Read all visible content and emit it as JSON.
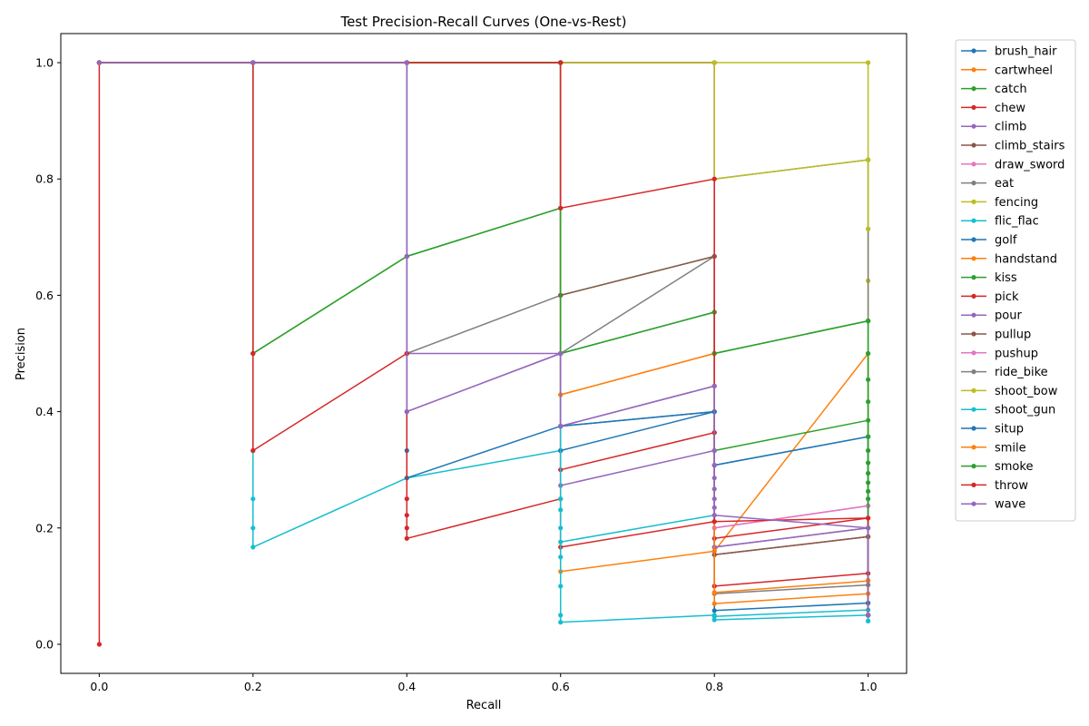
{
  "chart_data": {
    "type": "line",
    "title": "Test Precision-Recall Curves (One-vs-Rest)",
    "xlabel": "Recall",
    "ylabel": "Precision",
    "xlim": [
      -0.05,
      1.05
    ],
    "ylim": [
      -0.05,
      1.05
    ],
    "xticks": [
      0.0,
      0.2,
      0.4,
      0.6,
      0.8,
      1.0
    ],
    "yticks": [
      0.0,
      0.2,
      0.4,
      0.6,
      0.8,
      1.0
    ],
    "xtick_labels": [
      "0.0",
      "0.2",
      "0.4",
      "0.6",
      "0.8",
      "1.0"
    ],
    "ytick_labels": [
      "0.0",
      "0.2",
      "0.4",
      "0.6",
      "0.8",
      "1.0"
    ],
    "grid": false,
    "legend_position": "outside-top-right",
    "series": [
      {
        "name": "brush_hair",
        "color": "#1f77b4",
        "points": [
          [
            0,
            1
          ],
          [
            0.2,
            1
          ],
          [
            0.4,
            1
          ],
          [
            0.6,
            1
          ],
          [
            0.6,
            0.375
          ],
          [
            0.8,
            0.4
          ],
          [
            0.8,
            0.308
          ],
          [
            1.0,
            0.357
          ],
          [
            1.0,
            0.071
          ],
          [
            1.0,
            0.05
          ]
        ]
      },
      {
        "name": "cartwheel",
        "color": "#ff7f0e",
        "points": [
          [
            0,
            1
          ],
          [
            0.2,
            1
          ],
          [
            0.4,
            1
          ],
          [
            0.6,
            1
          ],
          [
            0.6,
            0.429
          ],
          [
            0.8,
            0.5
          ],
          [
            0.8,
            0.16
          ],
          [
            1.0,
            0.5
          ],
          [
            1.0,
            0.11
          ],
          [
            1.0,
            0.05
          ]
        ]
      },
      {
        "name": "catch",
        "color": "#2ca02c",
        "points": [
          [
            0,
            1
          ],
          [
            0.2,
            1
          ],
          [
            0.2,
            0.5
          ],
          [
            0.4,
            0.667
          ],
          [
            0.6,
            0.75
          ],
          [
            0.6,
            0.5
          ],
          [
            0.8,
            0.571
          ],
          [
            0.8,
            0.333
          ],
          [
            1.0,
            0.385
          ],
          [
            1.0,
            0.05
          ]
        ]
      },
      {
        "name": "chew",
        "color": "#d62728",
        "points": [
          [
            0,
            1
          ],
          [
            0.2,
            1
          ],
          [
            0.4,
            1
          ],
          [
            0.6,
            1
          ],
          [
            0.6,
            0.3
          ],
          [
            0.8,
            0.364
          ],
          [
            0.8,
            0.182
          ],
          [
            1.0,
            0.217
          ],
          [
            1.0,
            0.05
          ]
        ]
      },
      {
        "name": "climb",
        "color": "#9467bd",
        "points": [
          [
            0,
            1
          ],
          [
            0.2,
            1
          ],
          [
            0.4,
            1
          ],
          [
            0.4,
            0.5
          ],
          [
            0.6,
            0.5
          ],
          [
            0.6,
            0.375
          ],
          [
            0.8,
            0.444
          ],
          [
            0.8,
            0.167
          ],
          [
            1.0,
            0.2
          ],
          [
            1.0,
            0.05
          ]
        ]
      },
      {
        "name": "climb_stairs",
        "color": "#8c564b",
        "points": [
          [
            0,
            1
          ],
          [
            0.2,
            1
          ],
          [
            0.4,
            1
          ],
          [
            0.6,
            1
          ],
          [
            0.8,
            1
          ],
          [
            0.8,
            0.154
          ],
          [
            1.0,
            0.185
          ],
          [
            1.0,
            0.05
          ]
        ]
      },
      {
        "name": "draw_sword",
        "color": "#e377c2",
        "points": [
          [
            0,
            1
          ],
          [
            0.2,
            1
          ],
          [
            0.4,
            1
          ],
          [
            0.6,
            1
          ],
          [
            0.8,
            1
          ],
          [
            0.8,
            0.2
          ],
          [
            1.0,
            0.238
          ],
          [
            1.0,
            0.05
          ]
        ]
      },
      {
        "name": "eat",
        "color": "#7f7f7f",
        "points": [
          [
            0,
            1
          ],
          [
            0.2,
            1
          ],
          [
            0.4,
            1
          ],
          [
            0.4,
            0.5
          ],
          [
            0.6,
            0.6
          ],
          [
            0.6,
            0.5
          ],
          [
            0.8,
            0.667
          ],
          [
            0.8,
            0.087
          ],
          [
            1.0,
            0.102
          ],
          [
            1.0,
            0.05
          ]
        ]
      },
      {
        "name": "fencing",
        "color": "#bcbd22",
        "points": [
          [
            0,
            1
          ],
          [
            0.2,
            1
          ],
          [
            0.4,
            1
          ],
          [
            0.6,
            1
          ],
          [
            0.8,
            1
          ],
          [
            1.0,
            1
          ],
          [
            1.0,
            0.833
          ],
          [
            1.0,
            0.714
          ],
          [
            1.0,
            0.625
          ],
          [
            1.0,
            0.556
          ]
        ]
      },
      {
        "name": "flic_flac",
        "color": "#17becf",
        "points": [
          [
            0,
            1
          ],
          [
            0.2,
            1
          ],
          [
            0.2,
            0.333
          ],
          [
            0.2,
            0.25
          ],
          [
            0.2,
            0.2
          ],
          [
            0.2,
            0.167
          ],
          [
            0.4,
            0.286
          ],
          [
            0.6,
            0.333
          ],
          [
            0.6,
            0.176
          ],
          [
            0.8,
            0.222
          ],
          [
            0.8,
            0.048
          ],
          [
            1.0,
            0.059
          ],
          [
            1.0,
            0.04
          ]
        ]
      },
      {
        "name": "golf",
        "color": "#1f77b4",
        "points": [
          [
            0,
            1
          ],
          [
            0.2,
            1
          ],
          [
            0.4,
            1
          ],
          [
            0.4,
            0.333
          ],
          [
            0.4,
            0.286
          ],
          [
            0.6,
            0.375
          ],
          [
            0.6,
            0.333
          ],
          [
            0.8,
            0.4
          ],
          [
            0.8,
            0.058
          ],
          [
            1.0,
            0.071
          ],
          [
            1.0,
            0.05
          ]
        ]
      },
      {
        "name": "handstand",
        "color": "#ff7f0e",
        "points": [
          [
            0,
            1
          ],
          [
            0.2,
            1
          ],
          [
            0.4,
            1
          ],
          [
            0.6,
            1
          ],
          [
            0.6,
            0.125
          ],
          [
            0.8,
            0.16
          ],
          [
            0.8,
            0.07
          ],
          [
            1.0,
            0.087
          ],
          [
            1.0,
            0.05
          ]
        ]
      },
      {
        "name": "kiss",
        "color": "#2ca02c",
        "points": [
          [
            0,
            1
          ],
          [
            0.2,
            1
          ],
          [
            0.2,
            0.5
          ],
          [
            0.4,
            0.667
          ],
          [
            0.6,
            0.75
          ],
          [
            0.6,
            0.6
          ],
          [
            0.8,
            0.667
          ],
          [
            0.8,
            0.5
          ],
          [
            1.0,
            0.556
          ],
          [
            1.0,
            0.5
          ],
          [
            1.0,
            0.455
          ],
          [
            1.0,
            0.417
          ],
          [
            1.0,
            0.333
          ],
          [
            1.0,
            0.25
          ],
          [
            1.0,
            0.05
          ]
        ]
      },
      {
        "name": "pick",
        "color": "#d62728",
        "points": [
          [
            0,
            0
          ],
          [
            0,
            1
          ],
          [
            0.2,
            1
          ],
          [
            0.2,
            0.5
          ],
          [
            0.2,
            0.333
          ],
          [
            0.4,
            0.5
          ],
          [
            0.4,
            0.25
          ],
          [
            0.4,
            0.222
          ],
          [
            0.4,
            0.2
          ],
          [
            0.4,
            0.182
          ],
          [
            0.6,
            0.25
          ],
          [
            0.6,
            0.167
          ],
          [
            0.8,
            0.211
          ],
          [
            0.8,
            0.1
          ],
          [
            1.0,
            0.122
          ],
          [
            1.0,
            0.05
          ]
        ]
      },
      {
        "name": "pour",
        "color": "#9467bd",
        "points": [
          [
            0,
            1
          ],
          [
            0.2,
            1
          ],
          [
            0.4,
            1
          ],
          [
            0.4,
            0.667
          ],
          [
            0.4,
            0.4
          ],
          [
            0.6,
            0.5
          ],
          [
            0.6,
            0.273
          ],
          [
            0.8,
            0.333
          ],
          [
            0.8,
            0.167
          ],
          [
            1.0,
            0.2
          ],
          [
            1.0,
            0.05
          ]
        ]
      },
      {
        "name": "pullup",
        "color": "#8c564b",
        "points": [
          [
            0,
            1
          ],
          [
            0.2,
            1
          ],
          [
            0.4,
            1
          ],
          [
            0.6,
            1
          ],
          [
            0.6,
            0.6
          ],
          [
            0.8,
            0.667
          ],
          [
            0.8,
            0.154
          ],
          [
            1.0,
            0.185
          ],
          [
            1.0,
            0.05
          ]
        ]
      },
      {
        "name": "pushup",
        "color": "#e377c2",
        "points": [
          [
            0,
            1
          ],
          [
            0.2,
            1
          ],
          [
            0.4,
            1
          ],
          [
            0.6,
            1
          ],
          [
            0.8,
            1
          ],
          [
            0.8,
            0.2
          ],
          [
            1.0,
            0.238
          ],
          [
            1.0,
            0.05
          ]
        ]
      },
      {
        "name": "ride_bike",
        "color": "#7f7f7f",
        "points": [
          [
            0,
            1
          ],
          [
            0.2,
            1
          ],
          [
            0.4,
            1
          ],
          [
            0.6,
            1
          ],
          [
            0.8,
            1
          ],
          [
            0.8,
            0.8
          ],
          [
            1.0,
            0.833
          ],
          [
            1.0,
            0.556
          ]
        ]
      },
      {
        "name": "shoot_bow",
        "color": "#bcbd22",
        "points": [
          [
            0,
            1
          ],
          [
            0.2,
            1
          ],
          [
            0.4,
            1
          ],
          [
            0.6,
            1
          ],
          [
            0.8,
            1
          ],
          [
            0.8,
            0.8
          ],
          [
            1.0,
            0.833
          ],
          [
            1.0,
            0.714
          ]
        ]
      },
      {
        "name": "shoot_gun",
        "color": "#17becf",
        "points": [
          [
            0,
            1
          ],
          [
            0.2,
            1
          ],
          [
            0.4,
            1
          ],
          [
            0.6,
            1
          ],
          [
            0.6,
            0.25
          ],
          [
            0.6,
            0.231
          ],
          [
            0.6,
            0.2
          ],
          [
            0.6,
            0.15
          ],
          [
            0.6,
            0.1
          ],
          [
            0.6,
            0.05
          ],
          [
            0.6,
            0.038
          ],
          [
            0.8,
            0.05
          ],
          [
            0.8,
            0.042
          ],
          [
            1.0,
            0.05
          ],
          [
            1.0,
            0.04
          ]
        ]
      },
      {
        "name": "situp",
        "color": "#1f77b4",
        "points": [
          [
            0,
            1
          ],
          [
            0.2,
            1
          ],
          [
            0.4,
            1
          ],
          [
            0.6,
            1
          ],
          [
            0.6,
            0.375
          ],
          [
            0.8,
            0.4
          ],
          [
            0.8,
            0.308
          ],
          [
            1.0,
            0.357
          ],
          [
            1.0,
            0.05
          ]
        ]
      },
      {
        "name": "smile",
        "color": "#ff7f0e",
        "points": [
          [
            0,
            1
          ],
          [
            0.2,
            1
          ],
          [
            0.4,
            1
          ],
          [
            0.6,
            1
          ],
          [
            0.6,
            0.429
          ],
          [
            0.8,
            0.5
          ],
          [
            0.8,
            0.444
          ],
          [
            0.8,
            0.089
          ],
          [
            1.0,
            0.109
          ],
          [
            1.0,
            0.05
          ]
        ]
      },
      {
        "name": "smoke",
        "color": "#2ca02c",
        "points": [
          [
            0,
            1
          ],
          [
            0.2,
            1
          ],
          [
            0.4,
            1
          ],
          [
            0.6,
            1
          ],
          [
            0.6,
            0.5
          ],
          [
            0.8,
            0.571
          ],
          [
            0.8,
            0.5
          ],
          [
            1.0,
            0.556
          ],
          [
            1.0,
            0.357
          ],
          [
            1.0,
            0.312
          ],
          [
            1.0,
            0.294
          ],
          [
            1.0,
            0.278
          ],
          [
            1.0,
            0.263
          ],
          [
            1.0,
            0.05
          ]
        ]
      },
      {
        "name": "throw",
        "color": "#d62728",
        "points": [
          [
            0,
            1
          ],
          [
            0.2,
            1
          ],
          [
            0.4,
            1
          ],
          [
            0.6,
            1
          ],
          [
            0.6,
            0.75
          ],
          [
            0.8,
            0.8
          ],
          [
            0.8,
            0.364
          ],
          [
            0.8,
            0.211
          ],
          [
            1.0,
            0.217
          ],
          [
            1.0,
            0.05
          ]
        ]
      },
      {
        "name": "wave",
        "color": "#9467bd",
        "points": [
          [
            0,
            1
          ],
          [
            0.2,
            1
          ],
          [
            0.4,
            1
          ],
          [
            0.4,
            0.667
          ],
          [
            0.4,
            0.4
          ],
          [
            0.6,
            0.5
          ],
          [
            0.6,
            0.375
          ],
          [
            0.8,
            0.444
          ],
          [
            0.8,
            0.333
          ],
          [
            0.8,
            0.308
          ],
          [
            0.8,
            0.286
          ],
          [
            0.8,
            0.267
          ],
          [
            0.8,
            0.25
          ],
          [
            0.8,
            0.235
          ],
          [
            0.8,
            0.222
          ],
          [
            1.0,
            0.2
          ],
          [
            1.0,
            0.05
          ]
        ]
      }
    ]
  }
}
